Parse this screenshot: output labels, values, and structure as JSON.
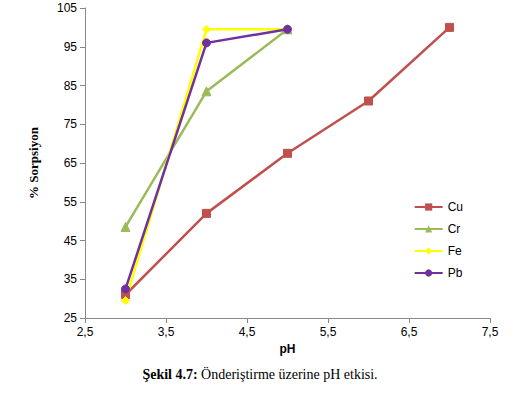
{
  "chart_data": {
    "type": "line",
    "title": "Şekil 4.7: Önderiştirme üzerine pH etkisi.",
    "x_label": "pH",
    "y_label": "% Sorpsiyon",
    "xlim": [
      2.5,
      7.5
    ],
    "xticks": [
      {
        "value": 2.5,
        "label": "2,5"
      },
      {
        "value": 3.5,
        "label": "3,5"
      },
      {
        "value": 4.5,
        "label": "4,5"
      },
      {
        "value": 5.5,
        "label": "5,5"
      },
      {
        "value": 6.5,
        "label": "6,5"
      },
      {
        "value": 7.5,
        "label": "7,5"
      }
    ],
    "ylim": [
      25,
      105
    ],
    "yticks": [
      25,
      35,
      45,
      55,
      65,
      75,
      85,
      95,
      105
    ],
    "grid": false,
    "legend": "right",
    "series": [
      {
        "name": "Cu",
        "color": "#c0504d",
        "marker": "square",
        "x": [
          3,
          4,
          5,
          6,
          7
        ],
        "values": [
          31,
          52,
          67.5,
          81,
          100
        ]
      },
      {
        "name": "Cr",
        "color": "#9bbb59",
        "marker": "triangle",
        "x": [
          3,
          4,
          5
        ],
        "values": [
          48.5,
          83.5,
          99.5
        ]
      },
      {
        "name": "Fe",
        "color": "#ffff00",
        "marker": "diamond",
        "x": [
          3,
          4,
          5
        ],
        "values": [
          29.5,
          99.5,
          99.5
        ]
      },
      {
        "name": "Pb",
        "color": "#7030a0",
        "marker": "circle",
        "x": [
          3,
          4,
          5
        ],
        "values": [
          32.5,
          96,
          99.5
        ]
      }
    ]
  }
}
